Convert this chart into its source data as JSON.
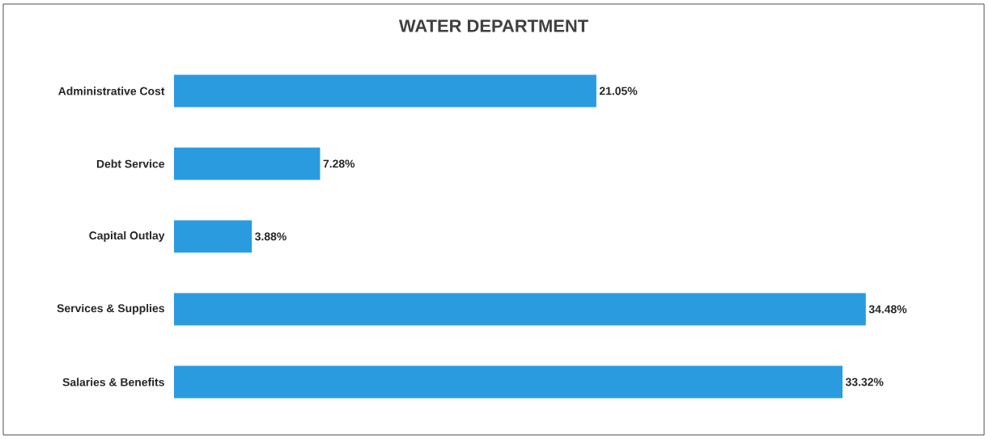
{
  "chart_data": {
    "type": "bar",
    "orientation": "horizontal",
    "title": "WATER DEPARTMENT",
    "categories": [
      "Administrative Cost",
      "Debt Service",
      "Capital Outlay",
      "Services & Supplies",
      "Salaries & Benefits"
    ],
    "values": [
      21.05,
      7.28,
      3.88,
      34.48,
      33.32
    ],
    "value_labels": [
      "21.05%",
      "7.28%",
      "3.88%",
      "34.48%",
      "33.32%"
    ],
    "color": "#2b9be0"
  }
}
